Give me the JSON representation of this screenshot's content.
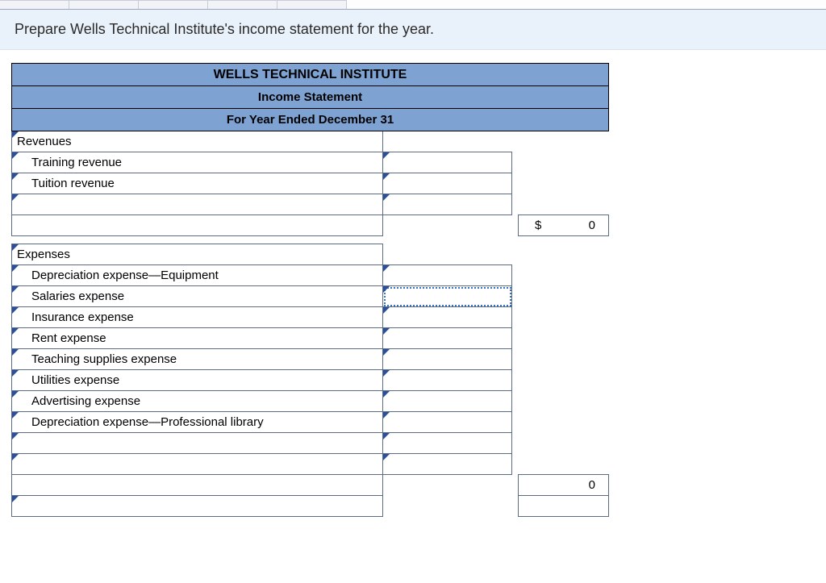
{
  "instruction": "Prepare Wells Technical Institute's income statement for the year.",
  "header": {
    "company": "WELLS TECHNICAL INSTITUTE",
    "title": "Income Statement",
    "period": "For Year Ended December 31"
  },
  "colors": {
    "header_bg": "#7ea3d3",
    "instruction_bg": "#e9f1fa",
    "border": "#5b6b84",
    "tick": "#2a4f9c",
    "focus": "#3a6fc7"
  },
  "revenues": {
    "section_label": "Revenues",
    "items": [
      {
        "label": "Training revenue"
      },
      {
        "label": "Tuition revenue"
      },
      {
        "label": ""
      }
    ],
    "total": {
      "symbol": "$",
      "value": "0"
    }
  },
  "expenses": {
    "section_label": "Expenses",
    "items": [
      {
        "label": "Depreciation expense—Equipment"
      },
      {
        "label": "Salaries expense",
        "focused_amt": true
      },
      {
        "label": "Insurance expense"
      },
      {
        "label": "Rent expense"
      },
      {
        "label": "Teaching supplies expense"
      },
      {
        "label": "Utilities expense"
      },
      {
        "label": "Advertising expense"
      },
      {
        "label": "Depreciation expense—Professional library"
      },
      {
        "label": ""
      },
      {
        "label": ""
      }
    ],
    "total": {
      "value": "0"
    }
  }
}
